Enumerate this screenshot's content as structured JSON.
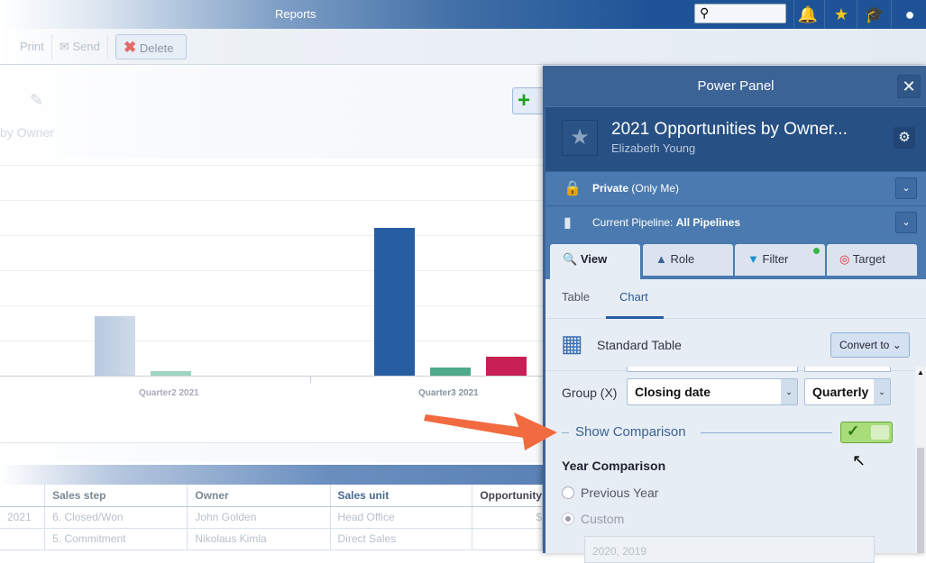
{
  "topbar": {
    "title": "Reports",
    "icons": [
      "search-icon",
      "bell-icon",
      "star-icon",
      "graduation-cap-icon",
      "user-icon"
    ]
  },
  "toolbar": {
    "print": "Print",
    "send": "Send",
    "delete": "Delete"
  },
  "report": {
    "subtitle_fragment": "by Owner"
  },
  "chart_data": {
    "type": "bar",
    "categories": [
      "Quarter2 2021",
      "Quarter3 2021"
    ],
    "series": [
      {
        "values": [
          1.7,
          4.2
        ]
      },
      {
        "values": [
          0.13,
          0.23
        ]
      },
      {
        "values": [
          null,
          0.54
        ]
      }
    ],
    "colors": [
      "#b8c9e0",
      "#275ea2",
      "#9fd5c0",
      "#4daa8a",
      "#c81f55"
    ],
    "grid": true
  },
  "table": {
    "headers": [
      "",
      "Sales step",
      "Owner",
      "Sales unit",
      "Opportunity"
    ],
    "rows": [
      [
        "2021",
        "6. Closed/Won",
        "John Golden",
        "Head Office",
        "$"
      ],
      [
        "",
        "5. Commitment",
        "Nikolaus Kimla",
        "Direct Sales",
        ""
      ]
    ]
  },
  "panel": {
    "title": "Power Panel",
    "report_title": "2021 Opportunities by Owner...",
    "owner": "Elizabeth Young",
    "privacy_bold": "Private",
    "privacy_rest": "(Only Me)",
    "pipeline_label": "Current Pipeline:",
    "pipeline_value": "All Pipelines",
    "tabs": [
      "View",
      "Role",
      "Filter",
      "Target"
    ],
    "subtabs": [
      "Table",
      "Chart"
    ],
    "standard_table": "Standard Table",
    "convert_to": "Convert to",
    "group_label": "Group (X)",
    "group_value": "Closing date",
    "group_period": "Quarterly",
    "show_comparison": "Show Comparison",
    "show_comparison_on": true,
    "year_comparison": "Year Comparison",
    "radio_previous": "Previous Year",
    "radio_custom": "Custom",
    "custom_value": "2020, 2019"
  }
}
